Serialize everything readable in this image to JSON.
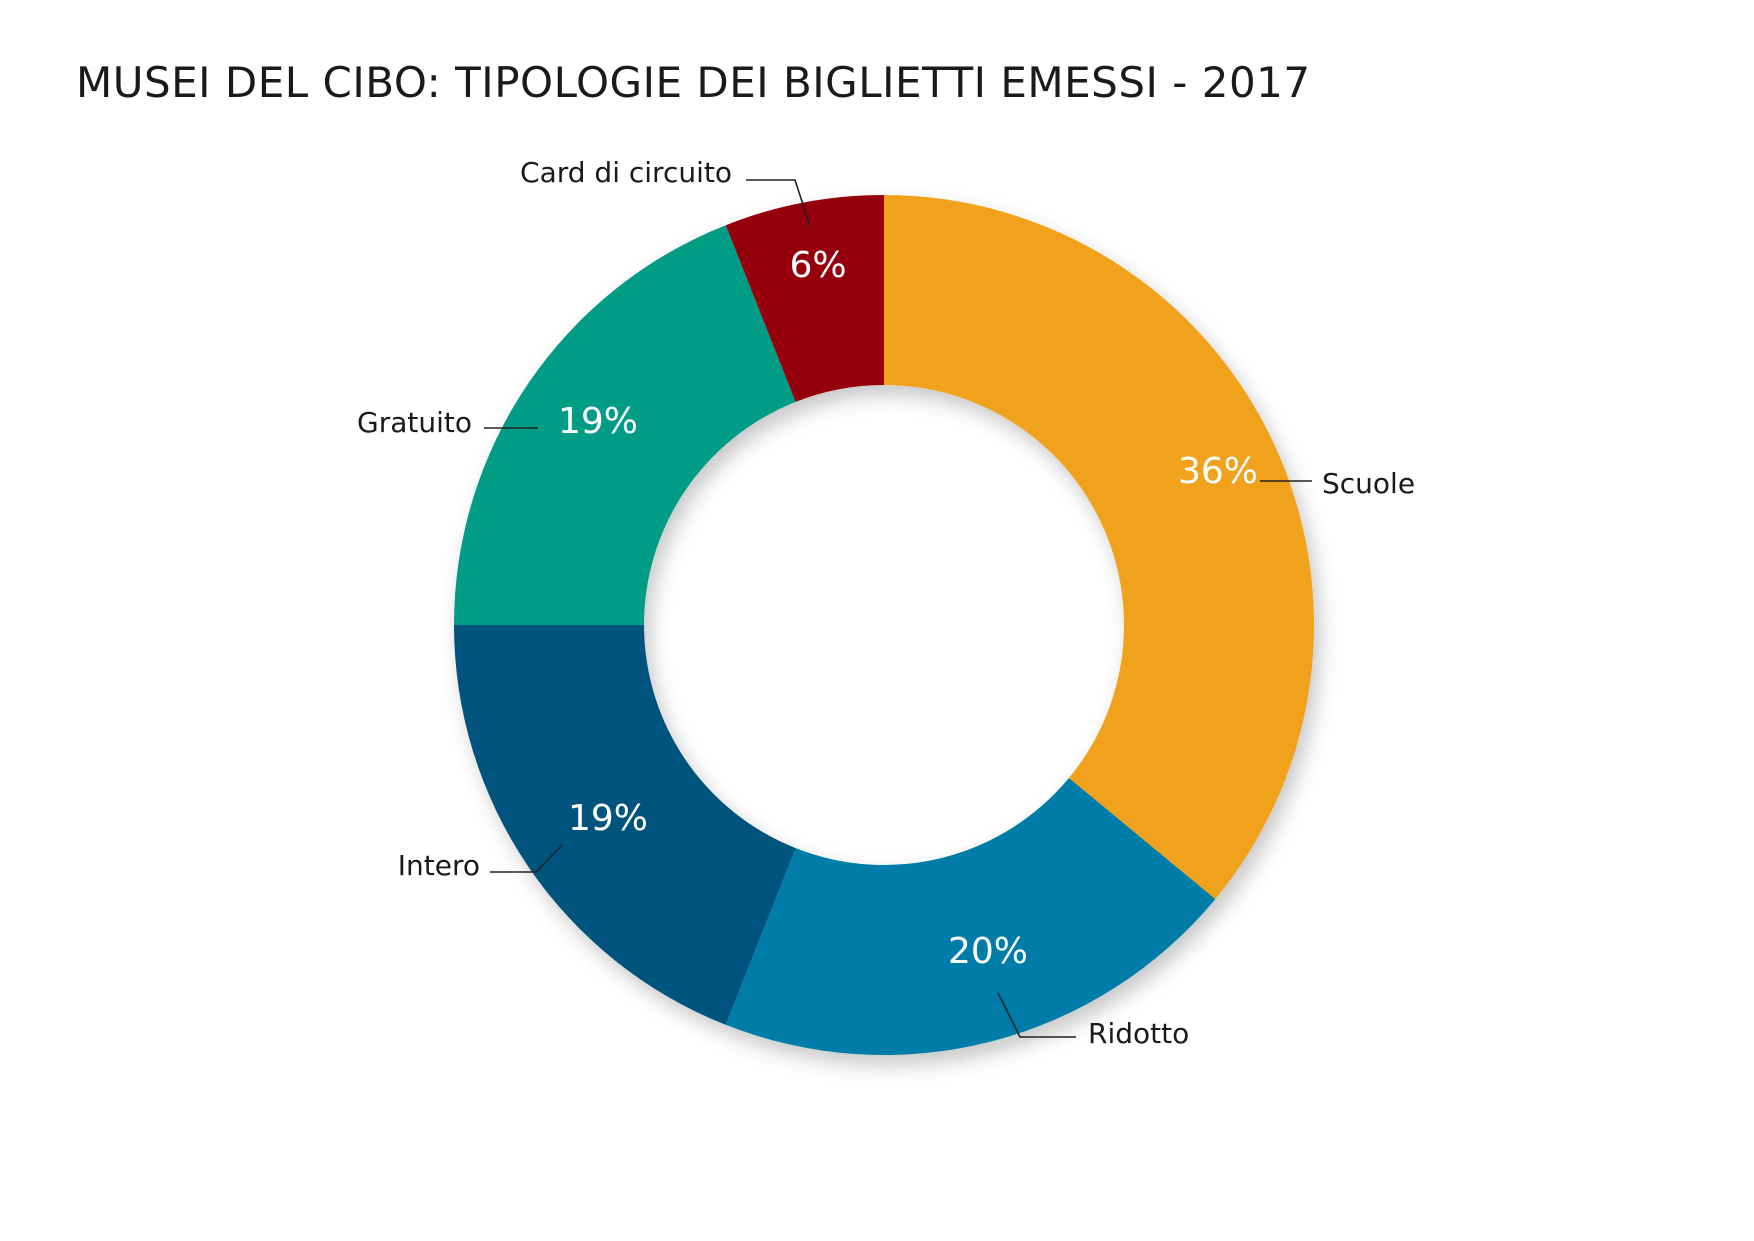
{
  "chart_data": {
    "type": "pie",
    "variant": "donut",
    "title": "MUSEI DEL CIBO: TIPOLOGIE DEI BIGLIETTI EMESSI - 2017",
    "categories": [
      "Scuole",
      "Ridotto",
      "Intero",
      "Gratuito",
      "Card di circuito"
    ],
    "values": [
      36,
      20,
      19,
      19,
      6
    ],
    "value_labels": [
      "36%",
      "20%",
      "19%",
      "19%",
      "6%"
    ],
    "colors": [
      "#F0A21F",
      "#027CA8",
      "#04527D",
      "#039C86",
      "#96000C"
    ],
    "legend": "none",
    "labels": "outside with leader lines"
  }
}
